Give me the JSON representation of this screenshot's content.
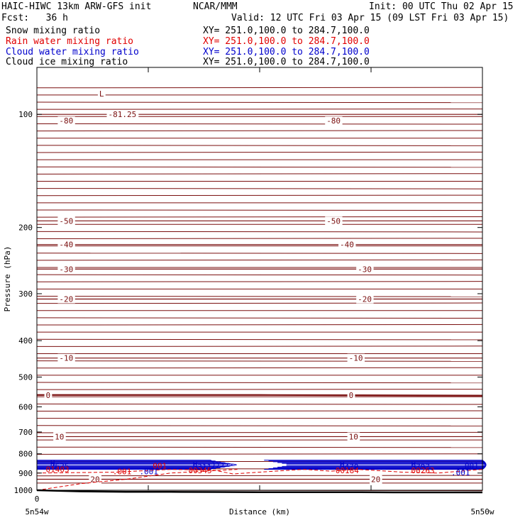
{
  "header": {
    "model": "HAIC-HIWC 13km ARW-GFS init",
    "org": "NCAR/MMM",
    "init": "Init: 00 UTC Thu 02 Apr 15",
    "fcst": "Fcst:   36 h",
    "valid": "Valid: 12 UTC Fri 03 Apr 15 (09 LST Fri 03 Apr 15)"
  },
  "fields": [
    {
      "name": "Snow mixing ratio",
      "xy": "XY= 251.0,100.0 to 284.7,100.0",
      "color": "#000000"
    },
    {
      "name": "Rain water mixing ratio",
      "xy": "XY= 251.0,100.0 to 284.7,100.0",
      "color": "#e00000"
    },
    {
      "name": "Cloud water mixing ratio",
      "xy": "XY= 251.0,100.0 to 284.7,100.0",
      "color": "#0000cc"
    },
    {
      "name": "Cloud ice mixing ratio",
      "xy": "XY= 251.0,100.0 to 284.7,100.0",
      "color": "#000000"
    }
  ],
  "colors": {
    "temperature": "#7a0f0f",
    "rain": "#e00000",
    "cloud": "#0000cc",
    "terrain": "#000000"
  },
  "chart_data": {
    "type": "line",
    "ylabel": "Pressure (hPa)",
    "xlabel": "Distance (km)",
    "x_left_label": "5n54w",
    "x_right_label": "5n50w",
    "x_origin_label": "0",
    "y_ticks": [
      100,
      200,
      300,
      400,
      500,
      600,
      700,
      800,
      900,
      1000
    ],
    "y_scale": "log",
    "ylim": [
      1000,
      75
    ],
    "xlim": [
      0,
      100
    ],
    "x_minor_ticks": [
      25,
      50,
      75
    ],
    "temperature_contours": [
      {
        "label": "-80",
        "p": [
          100,
          100,
          100
        ]
      },
      {
        "label": "-50",
        "p": [
          192,
          192,
          192
        ]
      },
      {
        "label": "-40",
        "p": [
          222,
          222,
          222
        ]
      },
      {
        "label": "-30",
        "p": [
          258,
          258,
          258
        ]
      },
      {
        "label": "-20",
        "p": [
          310,
          310,
          310
        ]
      },
      {
        "label": "-10",
        "p": [
          445,
          445,
          445
        ]
      },
      {
        "label": "0",
        "p": [
          558,
          558,
          560
        ],
        "bold": true
      },
      {
        "label": "10",
        "p": [
          720,
          720,
          720
        ]
      },
      {
        "label": "20",
        "p": [
          935,
          935,
          935
        ]
      }
    ],
    "temperature_labels": [
      {
        "text": "L",
        "x": 14,
        "p": 88
      },
      {
        "text": "-81.25",
        "x": 16,
        "p": 100
      },
      {
        "text": "-80",
        "x": 5,
        "p": 104
      },
      {
        "text": "-80",
        "x": 65,
        "p": 104
      },
      {
        "text": "-50",
        "x": 5,
        "p": 192
      },
      {
        "text": "-50",
        "x": 65,
        "p": 192
      },
      {
        "text": "-40",
        "x": 5,
        "p": 222
      },
      {
        "text": "-40",
        "x": 68,
        "p": 222
      },
      {
        "text": "-30",
        "x": 5,
        "p": 258
      },
      {
        "text": "-30",
        "x": 72,
        "p": 258
      },
      {
        "text": "-20",
        "x": 5,
        "p": 310
      },
      {
        "text": "-20",
        "x": 72,
        "p": 310
      },
      {
        "text": "-10",
        "x": 5,
        "p": 445
      },
      {
        "text": "-10",
        "x": 70,
        "p": 445
      },
      {
        "text": "0",
        "x": 2,
        "p": 558
      },
      {
        "text": "0",
        "x": 70,
        "p": 558
      },
      {
        "text": "10",
        "x": 4,
        "p": 720
      },
      {
        "text": "10",
        "x": 70,
        "p": 720
      },
      {
        "text": "20",
        "x": 12,
        "p": 935
      },
      {
        "text": "20",
        "x": 75,
        "p": 935
      }
    ],
    "maxima": [
      {
        "text": "H",
        "x": 3,
        "p": 848,
        "color": "cloud"
      },
      {
        "text": "7625",
        "x": 3,
        "p": 862,
        "color": "cloud"
      },
      {
        "text": "01403",
        "x": 2,
        "p": 880,
        "color": "rain"
      },
      {
        "text": "001",
        "x": 26,
        "p": 860,
        "color": "rain"
      },
      {
        "text": "H",
        "x": 35,
        "p": 852,
        "color": "cloud"
      },
      {
        "text": "5311",
        "x": 35,
        "p": 866,
        "color": "cloud"
      },
      {
        "text": "00345",
        "x": 34,
        "p": 886,
        "color": "rain"
      },
      {
        "text": ".001",
        "x": 17,
        "p": 892,
        "color": "rain"
      },
      {
        "text": ".001",
        "x": 23,
        "p": 892,
        "color": "cloud"
      },
      {
        "text": "H",
        "x": 68,
        "p": 852,
        "color": "cloud"
      },
      {
        "text": "5479",
        "x": 68,
        "p": 866,
        "color": "cloud"
      },
      {
        "text": "00184",
        "x": 67,
        "p": 886,
        "color": "rain"
      },
      {
        "text": "H",
        "x": 84,
        "p": 852,
        "color": "cloud"
      },
      {
        "text": "5797",
        "x": 84,
        "p": 866,
        "color": "cloud"
      },
      {
        "text": "00263",
        "x": 84,
        "p": 886,
        "color": "rain"
      },
      {
        "text": "001",
        "x": 96,
        "p": 860,
        "color": "cloud"
      },
      {
        "text": ".001",
        "x": 93,
        "p": 898,
        "color": "cloud"
      }
    ],
    "terrain_p": [
      1000,
      1007,
      1010,
      1010,
      1011,
      1012,
      1012,
      1012,
      1013,
      1013,
      1013
    ]
  }
}
